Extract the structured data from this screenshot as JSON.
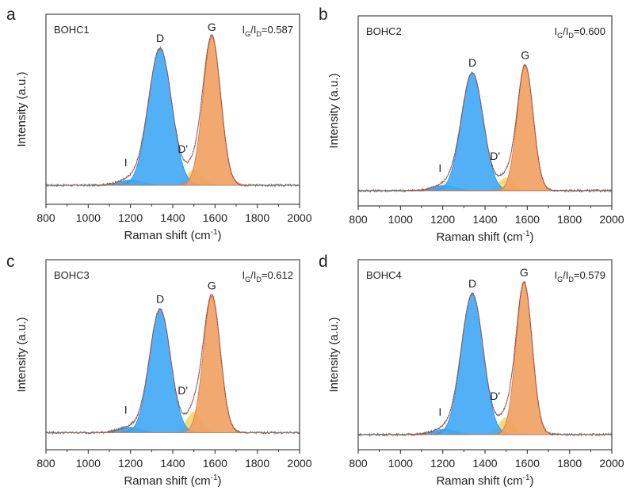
{
  "chart_data": [
    {
      "type": "line",
      "panel_label": "a",
      "sample": "BOHC1",
      "ratio": {
        "symbol": "I",
        "num_sub": "G",
        "sep": "/",
        "den_sub": "D",
        "value": "=0.587"
      },
      "xlabel": "Raman shift (cm",
      "xlabel_sup": "-1",
      "xlabel_end": ")",
      "ylabel": "Intensity (a.u.)",
      "xlim": [
        800,
        2000
      ],
      "xticks": [
        "800",
        "1000",
        "1200",
        "1400",
        "1600",
        "1800",
        "2000"
      ],
      "baseline": 0.1,
      "peaks": [
        {
          "label": "I",
          "center": 1200,
          "width": 60,
          "height": 0.03,
          "color": "#3a9be6"
        },
        {
          "label": "D",
          "center": 1340,
          "width": 55,
          "height": 0.72,
          "color": "#3fa9f5"
        },
        {
          "label": "D'",
          "center": 1500,
          "width": 40,
          "height": 0.08,
          "color": "#f2d36b"
        },
        {
          "label": "G",
          "center": 1585,
          "width": 42,
          "height": 0.78,
          "color": "#f0a061"
        }
      ]
    },
    {
      "type": "line",
      "panel_label": "b",
      "sample": "BOHC2",
      "ratio": {
        "symbol": "I",
        "num_sub": "G",
        "sep": "/",
        "den_sub": "D",
        "value": "=0.600"
      },
      "xlabel": "Raman shift (cm",
      "xlabel_sup": "-1",
      "xlabel_end": ")",
      "ylabel": "Intensity (a.u.)",
      "xlim": [
        800,
        2000
      ],
      "xticks": [
        "800",
        "1000",
        "1200",
        "1400",
        "1600",
        "1800",
        "2000"
      ],
      "baseline": 0.08,
      "peaks": [
        {
          "label": "I",
          "center": 1210,
          "width": 55,
          "height": 0.03,
          "color": "#3a9be6"
        },
        {
          "label": "D",
          "center": 1340,
          "width": 52,
          "height": 0.62,
          "color": "#3fa9f5"
        },
        {
          "label": "D'",
          "center": 1500,
          "width": 35,
          "height": 0.07,
          "color": "#f2d36b"
        },
        {
          "label": "G",
          "center": 1590,
          "width": 38,
          "height": 0.66,
          "color": "#f0a061"
        }
      ]
    },
    {
      "type": "line",
      "panel_label": "c",
      "sample": "BOHC3",
      "ratio": {
        "symbol": "I",
        "num_sub": "G",
        "sep": "/",
        "den_sub": "D",
        "value": "=0.612"
      },
      "xlabel": "Raman shift (cm",
      "xlabel_sup": "-1",
      "xlabel_end": ")",
      "ylabel": "Intensity (a.u.)",
      "xlim": [
        800,
        2000
      ],
      "xticks": [
        "800",
        "1000",
        "1200",
        "1400",
        "1600",
        "1800",
        "2000"
      ],
      "baseline": 0.09,
      "peaks": [
        {
          "label": "I",
          "center": 1200,
          "width": 55,
          "height": 0.03,
          "color": "#3a9be6"
        },
        {
          "label": "D",
          "center": 1340,
          "width": 50,
          "height": 0.65,
          "color": "#3fa9f5"
        },
        {
          "label": "D'",
          "center": 1500,
          "width": 35,
          "height": 0.11,
          "color": "#f2d36b"
        },
        {
          "label": "G",
          "center": 1585,
          "width": 40,
          "height": 0.72,
          "color": "#f0a061"
        }
      ]
    },
    {
      "type": "line",
      "panel_label": "d",
      "sample": "BOHC4",
      "ratio": {
        "symbol": "I",
        "num_sub": "G",
        "sep": "/",
        "den_sub": "D",
        "value": "=0.579"
      },
      "xlabel": "Raman shift (cm",
      "xlabel_sup": "-1",
      "xlabel_end": ")",
      "ylabel": "Intensity (a.u.)",
      "xlim": [
        800,
        2000
      ],
      "xticks": [
        "800",
        "1000",
        "1200",
        "1400",
        "1600",
        "1800",
        "2000"
      ],
      "baseline": 0.08,
      "peaks": [
        {
          "label": "I",
          "center": 1210,
          "width": 55,
          "height": 0.03,
          "color": "#3a9be6"
        },
        {
          "label": "D",
          "center": 1340,
          "width": 52,
          "height": 0.74,
          "color": "#3fa9f5"
        },
        {
          "label": "D'",
          "center": 1500,
          "width": 35,
          "height": 0.09,
          "color": "#f2d36b"
        },
        {
          "label": "G",
          "center": 1585,
          "width": 38,
          "height": 0.8,
          "color": "#f0a061"
        }
      ]
    }
  ]
}
